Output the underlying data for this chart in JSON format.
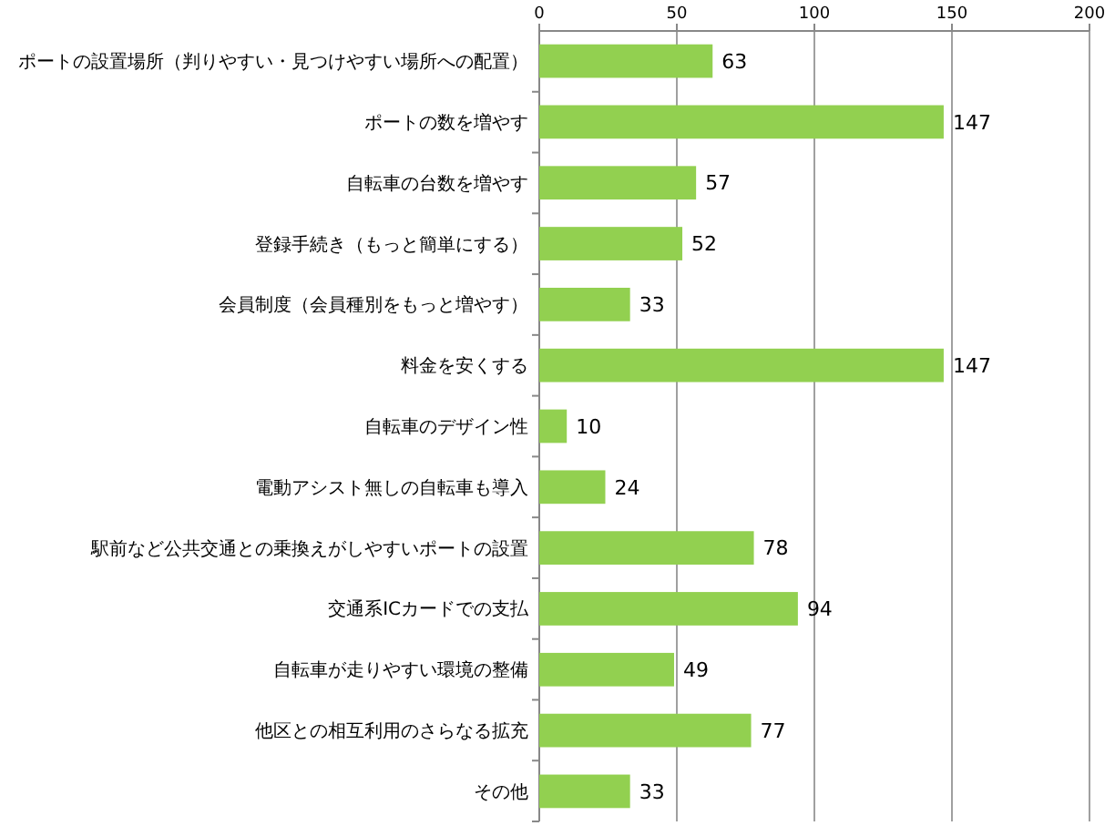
{
  "chart_data": {
    "type": "bar",
    "orientation": "horizontal",
    "categories": [
      "ポートの設置場所（判りやすい・見つけやすい場所への配置）",
      "ポートの数を増やす",
      "自転車の台数を増やす",
      "登録手続き（もっと簡単にする）",
      "会員制度（会員種別をもっと増やす）",
      "料金を安くする",
      "自転車のデザイン性",
      "電動アシスト無しの自転車も導入",
      "駅前など公共交通との乗換えがしやすいポートの設置",
      "交通系ICカードでの支払",
      "自転車が走りやすい環境の整備",
      "他区との相互利用のさらなる拡充",
      "その他"
    ],
    "values": [
      63,
      147,
      57,
      52,
      33,
      147,
      10,
      24,
      78,
      94,
      49,
      77,
      33
    ],
    "color": "#92d050",
    "xlim": [
      0,
      200
    ],
    "xticks": [
      0,
      50,
      100,
      150,
      200
    ],
    "grid": "x",
    "data_labels": true
  }
}
